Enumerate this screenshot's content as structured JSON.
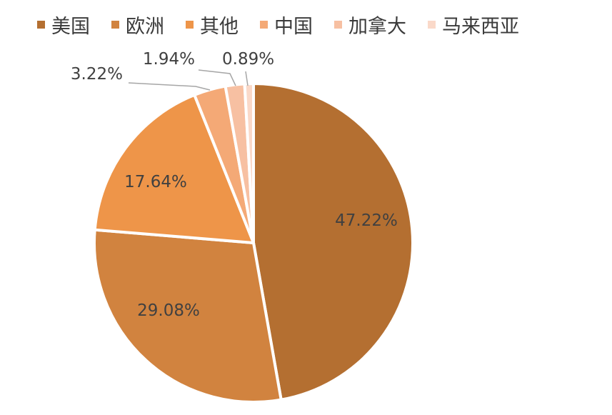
{
  "chart_data": {
    "type": "pie",
    "categories": [
      "美国",
      "欧洲",
      "其他",
      "中国",
      "加拿大",
      "马来西亚"
    ],
    "values": [
      47.22,
      29.08,
      17.64,
      3.22,
      1.94,
      0.89
    ],
    "labels": [
      "47.22%",
      "29.08%",
      "17.64%",
      "3.22%",
      "1.94%",
      "0.89%"
    ],
    "colors": [
      "#B46F31",
      "#D1833F",
      "#EE9549",
      "#F4A976",
      "#F7C0A2",
      "#FAD9C9"
    ],
    "legend_position": "top"
  }
}
